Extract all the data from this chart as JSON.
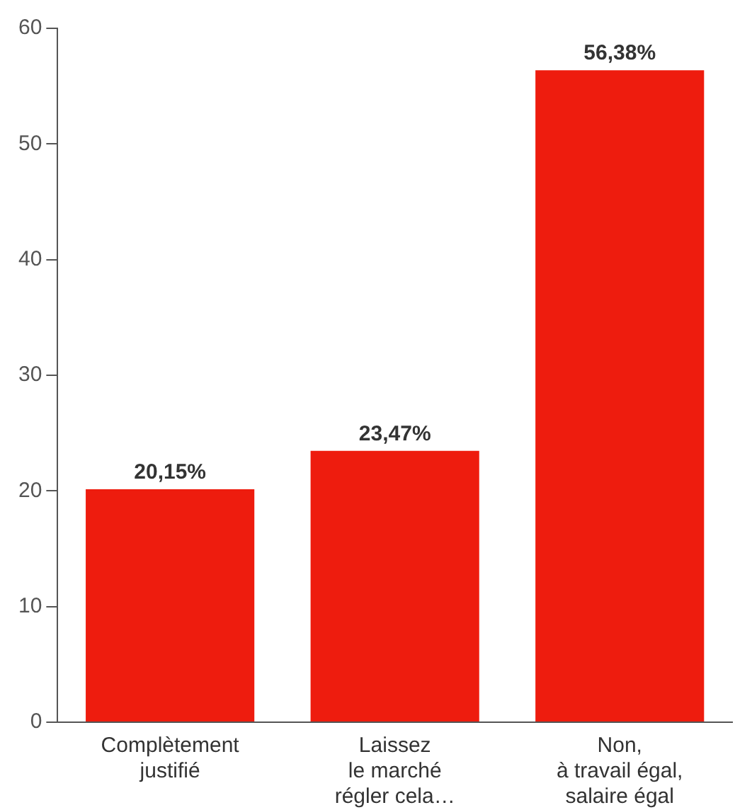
{
  "chart_data": {
    "type": "bar",
    "categories": [
      "Complètement\njustifié",
      "Laissez\nle marché\nrégler cela…",
      "Non,\nà travail égal,\nsalaire égal"
    ],
    "values": [
      20.15,
      23.47,
      56.38
    ],
    "color": "#ee1c0e",
    "value_labels": [
      "20,15%",
      "23,47%",
      "56,38%"
    ],
    "ylim": [
      0,
      60
    ],
    "yticks": [
      0,
      10,
      20,
      30,
      40,
      50,
      60
    ],
    "grid": false
  }
}
